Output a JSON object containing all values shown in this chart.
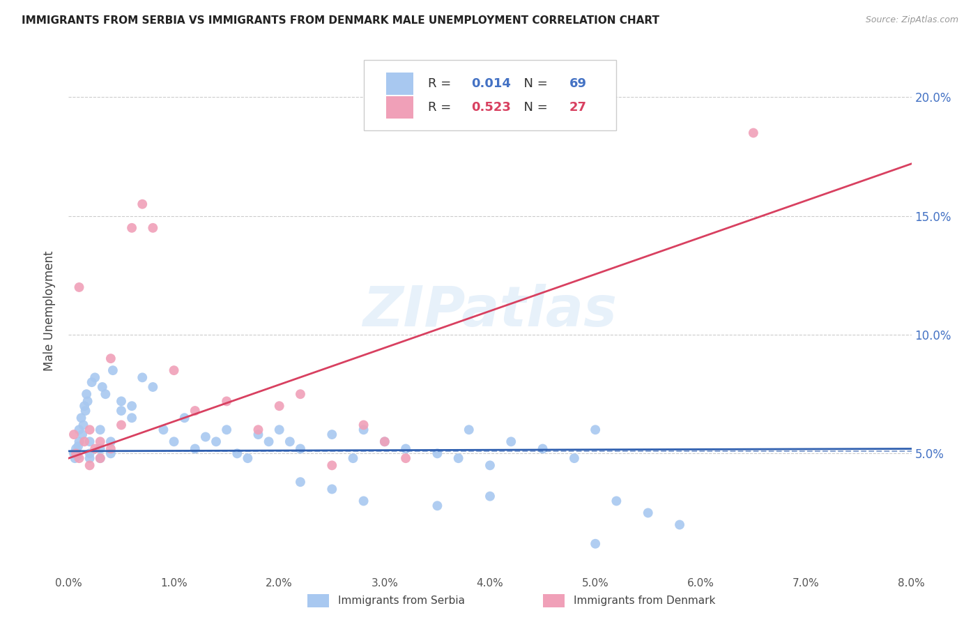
{
  "title": "IMMIGRANTS FROM SERBIA VS IMMIGRANTS FROM DENMARK MALE UNEMPLOYMENT CORRELATION CHART",
  "source": "Source: ZipAtlas.com",
  "ylabel": "Male Unemployment",
  "xlim": [
    0.0,
    0.08
  ],
  "ylim": [
    0.0,
    0.22
  ],
  "yticks": [
    0.05,
    0.1,
    0.15,
    0.2
  ],
  "ytick_labels": [
    "5.0%",
    "10.0%",
    "15.0%",
    "20.0%"
  ],
  "xticks": [
    0.0,
    0.01,
    0.02,
    0.03,
    0.04,
    0.05,
    0.06,
    0.07,
    0.08
  ],
  "xtick_labels": [
    "0.0%",
    "1.0%",
    "2.0%",
    "3.0%",
    "4.0%",
    "5.0%",
    "6.0%",
    "7.0%",
    "8.0%"
  ],
  "serbia_R": "0.014",
  "serbia_N": "69",
  "denmark_R": "0.523",
  "denmark_N": "27",
  "serbia_color": "#a8c8f0",
  "denmark_color": "#f0a0b8",
  "serbia_line_color": "#3060b0",
  "denmark_line_color": "#d84060",
  "serbia_trend": [
    0.0,
    0.08,
    0.051,
    0.052
  ],
  "denmark_trend": [
    0.0,
    0.08,
    0.048,
    0.172
  ],
  "serbia_mean_line": 0.051,
  "watermark_text": "ZIPatlas",
  "serbia_scatter_x": [
    0.0005,
    0.0006,
    0.0007,
    0.0008,
    0.0009,
    0.001,
    0.001,
    0.0012,
    0.0013,
    0.0014,
    0.0015,
    0.0016,
    0.0017,
    0.0018,
    0.002,
    0.002,
    0.002,
    0.0022,
    0.0025,
    0.003,
    0.003,
    0.003,
    0.0032,
    0.0035,
    0.004,
    0.004,
    0.0042,
    0.005,
    0.005,
    0.006,
    0.006,
    0.007,
    0.008,
    0.009,
    0.01,
    0.011,
    0.012,
    0.013,
    0.014,
    0.015,
    0.016,
    0.017,
    0.018,
    0.019,
    0.02,
    0.021,
    0.022,
    0.025,
    0.027,
    0.028,
    0.03,
    0.032,
    0.035,
    0.037,
    0.038,
    0.04,
    0.042,
    0.045,
    0.048,
    0.05,
    0.022,
    0.025,
    0.028,
    0.035,
    0.04,
    0.052,
    0.055,
    0.058,
    0.05
  ],
  "serbia_scatter_y": [
    0.05,
    0.048,
    0.052,
    0.049,
    0.053,
    0.06,
    0.055,
    0.065,
    0.058,
    0.062,
    0.07,
    0.068,
    0.075,
    0.072,
    0.05,
    0.048,
    0.055,
    0.08,
    0.082,
    0.048,
    0.052,
    0.06,
    0.078,
    0.075,
    0.05,
    0.055,
    0.085,
    0.072,
    0.068,
    0.07,
    0.065,
    0.082,
    0.078,
    0.06,
    0.055,
    0.065,
    0.052,
    0.057,
    0.055,
    0.06,
    0.05,
    0.048,
    0.058,
    0.055,
    0.06,
    0.055,
    0.052,
    0.058,
    0.048,
    0.06,
    0.055,
    0.052,
    0.05,
    0.048,
    0.06,
    0.045,
    0.055,
    0.052,
    0.048,
    0.06,
    0.038,
    0.035,
    0.03,
    0.028,
    0.032,
    0.03,
    0.025,
    0.02,
    0.012
  ],
  "denmark_scatter_x": [
    0.0005,
    0.0007,
    0.001,
    0.001,
    0.0015,
    0.002,
    0.002,
    0.0025,
    0.003,
    0.003,
    0.004,
    0.004,
    0.005,
    0.006,
    0.007,
    0.008,
    0.01,
    0.012,
    0.015,
    0.018,
    0.02,
    0.022,
    0.025,
    0.028,
    0.03,
    0.032,
    0.065
  ],
  "denmark_scatter_y": [
    0.058,
    0.05,
    0.048,
    0.12,
    0.055,
    0.06,
    0.045,
    0.052,
    0.055,
    0.048,
    0.052,
    0.09,
    0.062,
    0.145,
    0.155,
    0.145,
    0.085,
    0.068,
    0.072,
    0.06,
    0.07,
    0.075,
    0.045,
    0.062,
    0.055,
    0.048,
    0.185
  ]
}
